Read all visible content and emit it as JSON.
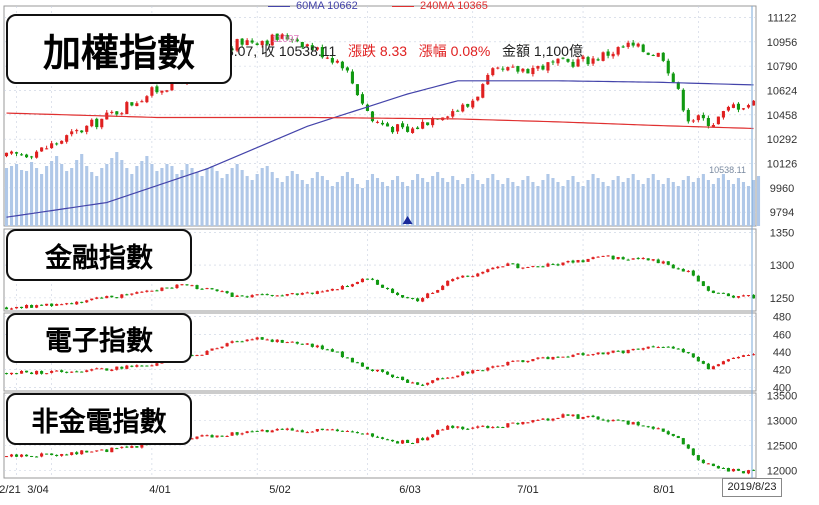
{
  "legend": {
    "ma60": {
      "label": "60MA 10662",
      "color": "#4444aa"
    },
    "ma240": {
      "label": "240MA 10365",
      "color": "#e03030"
    }
  },
  "info": {
    "close_partial": "3.07",
    "close_label": "收",
    "close_value": "10538.11",
    "change": "漲跌 8.33",
    "pct": "漲幅 0.08%",
    "amount": "金額 1,100億",
    "peak": "11097",
    "volume_note": "10538.11"
  },
  "panels": {
    "main": {
      "title": "加權指數",
      "yticks": [
        "11122",
        "10956",
        "10790",
        "10624",
        "10458",
        "10292",
        "10126",
        "9960",
        "9794"
      ]
    },
    "finance": {
      "title": "金融指數",
      "yticks": [
        "1350",
        "1300",
        "1250"
      ]
    },
    "electronics": {
      "title": "電子指數",
      "yticks": [
        "480",
        "460",
        "440",
        "420",
        "400"
      ]
    },
    "non_finance": {
      "title": "非金電指數",
      "yticks": [
        "13500",
        "13000",
        "12500",
        "12000"
      ]
    }
  },
  "xaxis": {
    "labels": [
      "2/21",
      "3/04",
      "4/01",
      "5/02",
      "6/03",
      "7/01",
      "8/01"
    ],
    "current_date": "2019/8/23"
  },
  "colors": {
    "up": "#e02020",
    "down": "#119911",
    "volume": "#b0c8e8",
    "grid": "#c8d0e0"
  },
  "chart_data": [
    {
      "type": "candlestick",
      "title": "加權指數",
      "ylim": [
        9700,
        11200
      ],
      "x_start": "2019-02-21",
      "x_end": "2019-08-23",
      "close_keypoints": [
        [
          0,
          10170
        ],
        [
          7,
          10220
        ],
        [
          17,
          10390
        ],
        [
          27,
          10580
        ],
        [
          37,
          10740
        ],
        [
          47,
          10960
        ],
        [
          57,
          10990
        ],
        [
          67,
          10810
        ],
        [
          73,
          10420
        ],
        [
          80,
          10340
        ],
        [
          86,
          10460
        ],
        [
          92,
          10520
        ],
        [
          97,
          10740
        ],
        [
          107,
          10790
        ],
        [
          117,
          10840
        ],
        [
          124,
          10930
        ],
        [
          131,
          10860
        ],
        [
          136,
          10440
        ],
        [
          141,
          10410
        ],
        [
          145,
          10520
        ],
        [
          149,
          10538
        ]
      ],
      "ma60": [
        [
          0,
          9760
        ],
        [
          20,
          9860
        ],
        [
          40,
          10090
        ],
        [
          60,
          10380
        ],
        [
          80,
          10600
        ],
        [
          90,
          10690
        ],
        [
          110,
          10690
        ],
        [
          130,
          10680
        ],
        [
          149,
          10662
        ]
      ],
      "ma240": [
        [
          0,
          10470
        ],
        [
          30,
          10440
        ],
        [
          60,
          10440
        ],
        [
          90,
          10430
        ],
        [
          110,
          10410
        ],
        [
          130,
          10385
        ],
        [
          149,
          10365
        ]
      ],
      "volume_levels": [
        58,
        60,
        62,
        56,
        55,
        64,
        58,
        52,
        60,
        65,
        70,
        62,
        55,
        58,
        66,
        72,
        60,
        54,
        50,
        58,
        62,
        68,
        74,
        66,
        58,
        52,
        60,
        65,
        70,
        62,
        55,
        58,
        62,
        60,
        52,
        56,
        62,
        58,
        54,
        50,
        58,
        60,
        55,
        48,
        52,
        58,
        62,
        56,
        50,
        46,
        52,
        58,
        60,
        54,
        48,
        44,
        50,
        55,
        52,
        46,
        42,
        48,
        54,
        50,
        46,
        40,
        44,
        50,
        54,
        48,
        42,
        38,
        46,
        52,
        48,
        44,
        40,
        46,
        50,
        44,
        40,
        46,
        52,
        48,
        44,
        50,
        54,
        48,
        44,
        50,
        46,
        42,
        48,
        52,
        46,
        42,
        48,
        52,
        46,
        42,
        48,
        44,
        40,
        46,
        50,
        44,
        40,
        46,
        52,
        48,
        44,
        40,
        46,
        50,
        44,
        40,
        46,
        52,
        48,
        44,
        40,
        46,
        50,
        44,
        48,
        52,
        46,
        42,
        48,
        52,
        46,
        42,
        48,
        44,
        40,
        46,
        50,
        44,
        48,
        52,
        46,
        42,
        48,
        52,
        46,
        42,
        48,
        44,
        40,
        46,
        50
      ]
    },
    {
      "type": "candlestick",
      "title": "金融指數",
      "ylim": [
        1230,
        1355
      ],
      "close_keypoints": [
        [
          0,
          1235
        ],
        [
          10,
          1240
        ],
        [
          20,
          1250
        ],
        [
          28,
          1262
        ],
        [
          36,
          1270
        ],
        [
          46,
          1252
        ],
        [
          56,
          1254
        ],
        [
          64,
          1260
        ],
        [
          72,
          1280
        ],
        [
          78,
          1255
        ],
        [
          82,
          1245
        ],
        [
          88,
          1275
        ],
        [
          94,
          1288
        ],
        [
          100,
          1300
        ],
        [
          105,
          1296
        ],
        [
          110,
          1302
        ],
        [
          120,
          1312
        ],
        [
          130,
          1306
        ],
        [
          136,
          1290
        ],
        [
          140,
          1260
        ],
        [
          146,
          1252
        ],
        [
          149,
          1252
        ]
      ]
    },
    {
      "type": "candlestick",
      "title": "電子指數",
      "ylim": [
        396,
        484
      ],
      "close_keypoints": [
        [
          0,
          416
        ],
        [
          12,
          418
        ],
        [
          20,
          421
        ],
        [
          30,
          426
        ],
        [
          40,
          440
        ],
        [
          48,
          456
        ],
        [
          56,
          452
        ],
        [
          64,
          444
        ],
        [
          72,
          422
        ],
        [
          78,
          410
        ],
        [
          82,
          402
        ],
        [
          88,
          412
        ],
        [
          96,
          422
        ],
        [
          104,
          432
        ],
        [
          112,
          436
        ],
        [
          122,
          440
        ],
        [
          130,
          446
        ],
        [
          136,
          440
        ],
        [
          140,
          422
        ],
        [
          146,
          436
        ],
        [
          149,
          438
        ]
      ]
    },
    {
      "type": "candlestick",
      "title": "非金電指數",
      "ylim": [
        11850,
        13550
      ],
      "close_keypoints": [
        [
          0,
          12280
        ],
        [
          10,
          12330
        ],
        [
          20,
          12400
        ],
        [
          30,
          12560
        ],
        [
          40,
          12690
        ],
        [
          48,
          12760
        ],
        [
          56,
          12810
        ],
        [
          64,
          12800
        ],
        [
          72,
          12700
        ],
        [
          78,
          12550
        ],
        [
          82,
          12600
        ],
        [
          88,
          12860
        ],
        [
          96,
          12860
        ],
        [
          104,
          12960
        ],
        [
          112,
          13100
        ],
        [
          120,
          13000
        ],
        [
          128,
          12900
        ],
        [
          134,
          12660
        ],
        [
          138,
          12180
        ],
        [
          142,
          12060
        ],
        [
          146,
          11980
        ],
        [
          149,
          11980
        ]
      ]
    }
  ]
}
